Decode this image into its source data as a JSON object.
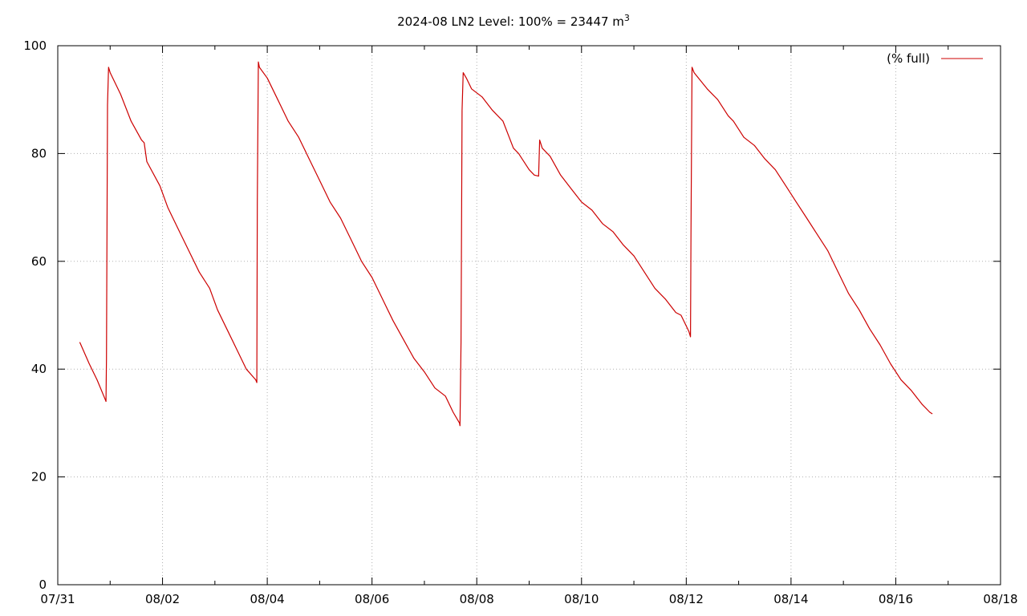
{
  "chart_data": {
    "type": "line",
    "title": "2024-08 LN2 Level: 100% = 23447 m",
    "title_superscript": "3",
    "xlabel": "",
    "ylabel": "",
    "ylim": [
      0,
      100
    ],
    "xlim_day": [
      0,
      18
    ],
    "y_ticks": [
      0,
      20,
      40,
      60,
      80,
      100
    ],
    "x_ticks": [
      {
        "day": 0,
        "label": "07/31"
      },
      {
        "day": 2,
        "label": "08/02"
      },
      {
        "day": 4,
        "label": "08/04"
      },
      {
        "day": 6,
        "label": "08/06"
      },
      {
        "day": 8,
        "label": "08/08"
      },
      {
        "day": 10,
        "label": "08/10"
      },
      {
        "day": 12,
        "label": "08/12"
      },
      {
        "day": 14,
        "label": "08/14"
      },
      {
        "day": 16,
        "label": "08/16"
      },
      {
        "day": 18,
        "label": "08/18"
      }
    ],
    "grid": true,
    "legend_position": "top-right",
    "series": [
      {
        "name": "(% full)",
        "color": "#cc0000",
        "points": [
          [
            0.42,
            45
          ],
          [
            0.6,
            41
          ],
          [
            0.75,
            38
          ],
          [
            0.9,
            34.5
          ],
          [
            0.92,
            34
          ],
          [
            0.93,
            42
          ],
          [
            0.95,
            89
          ],
          [
            0.97,
            96
          ],
          [
            1.0,
            95
          ],
          [
            1.2,
            91
          ],
          [
            1.4,
            86
          ],
          [
            1.6,
            82.5
          ],
          [
            1.65,
            82
          ],
          [
            1.7,
            78.5
          ],
          [
            1.95,
            74
          ],
          [
            2.1,
            70
          ],
          [
            2.3,
            66
          ],
          [
            2.55,
            61
          ],
          [
            2.7,
            58
          ],
          [
            2.9,
            55
          ],
          [
            3.05,
            51
          ],
          [
            3.25,
            47
          ],
          [
            3.45,
            43
          ],
          [
            3.6,
            40
          ],
          [
            3.78,
            38
          ],
          [
            3.8,
            37.5
          ],
          [
            3.81,
            71
          ],
          [
            3.83,
            97
          ],
          [
            3.85,
            96
          ],
          [
            4.0,
            94
          ],
          [
            4.2,
            90
          ],
          [
            4.4,
            86
          ],
          [
            4.6,
            83
          ],
          [
            4.8,
            79
          ],
          [
            5.0,
            75
          ],
          [
            5.2,
            71
          ],
          [
            5.4,
            68
          ],
          [
            5.6,
            64
          ],
          [
            5.8,
            60
          ],
          [
            6.0,
            57
          ],
          [
            6.2,
            53
          ],
          [
            6.4,
            49
          ],
          [
            6.6,
            45.5
          ],
          [
            6.8,
            42
          ],
          [
            7.0,
            39.5
          ],
          [
            7.2,
            36.5
          ],
          [
            7.4,
            35
          ],
          [
            7.55,
            32
          ],
          [
            7.67,
            30
          ],
          [
            7.68,
            29.5
          ],
          [
            7.7,
            45
          ],
          [
            7.72,
            88
          ],
          [
            7.74,
            95
          ],
          [
            7.8,
            94
          ],
          [
            7.9,
            92
          ],
          [
            8.1,
            90.5
          ],
          [
            8.3,
            88
          ],
          [
            8.5,
            86
          ],
          [
            8.7,
            81
          ],
          [
            8.8,
            80
          ],
          [
            9.0,
            77
          ],
          [
            9.1,
            76
          ],
          [
            9.18,
            75.8
          ],
          [
            9.2,
            82.5
          ],
          [
            9.25,
            81
          ],
          [
            9.4,
            79.5
          ],
          [
            9.6,
            76
          ],
          [
            9.8,
            73.5
          ],
          [
            10.0,
            71
          ],
          [
            10.2,
            69.5
          ],
          [
            10.4,
            67
          ],
          [
            10.6,
            65.5
          ],
          [
            10.8,
            63
          ],
          [
            11.0,
            61
          ],
          [
            11.2,
            58
          ],
          [
            11.4,
            55
          ],
          [
            11.6,
            53
          ],
          [
            11.8,
            50.5
          ],
          [
            11.9,
            50
          ],
          [
            12.0,
            48
          ],
          [
            12.05,
            47
          ],
          [
            12.08,
            46
          ],
          [
            12.09,
            65
          ],
          [
            12.11,
            96
          ],
          [
            12.15,
            95
          ],
          [
            12.4,
            92
          ],
          [
            12.6,
            90
          ],
          [
            12.8,
            87
          ],
          [
            12.9,
            86
          ],
          [
            13.1,
            83
          ],
          [
            13.3,
            81.5
          ],
          [
            13.5,
            79
          ],
          [
            13.7,
            77
          ],
          [
            13.9,
            74
          ],
          [
            14.1,
            71
          ],
          [
            14.3,
            68
          ],
          [
            14.5,
            65
          ],
          [
            14.7,
            62
          ],
          [
            14.9,
            58
          ],
          [
            15.1,
            54
          ],
          [
            15.3,
            51
          ],
          [
            15.5,
            47.5
          ],
          [
            15.7,
            44.5
          ],
          [
            15.9,
            41
          ],
          [
            16.1,
            38
          ],
          [
            16.3,
            36
          ],
          [
            16.5,
            33.5
          ],
          [
            16.65,
            32
          ],
          [
            16.7,
            31.7
          ]
        ]
      }
    ]
  }
}
